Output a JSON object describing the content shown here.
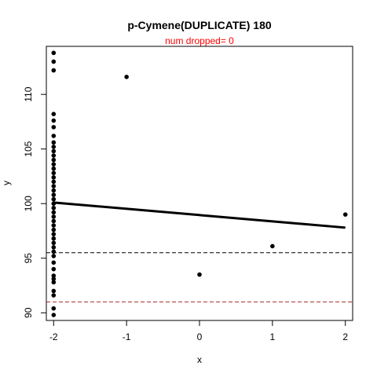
{
  "chart_data": {
    "type": "scatter",
    "title": "p-Cymene(DUPLICATE) 180",
    "subtitle": "num dropped= 0",
    "xlabel": "x",
    "ylabel": "y",
    "xlim": [
      -2.1,
      2.1
    ],
    "ylim": [
      89.3,
      114.4
    ],
    "x_ticks": [
      -2,
      -1,
      0,
      1,
      2
    ],
    "y_ticks": [
      90,
      95,
      100,
      105,
      110
    ],
    "points": [
      {
        "x": -2,
        "y": 113.8
      },
      {
        "x": -2,
        "y": 113.0
      },
      {
        "x": -2,
        "y": 112.2
      },
      {
        "x": -2,
        "y": 108.2
      },
      {
        "x": -2,
        "y": 107.6
      },
      {
        "x": -2,
        "y": 107.0
      },
      {
        "x": -2,
        "y": 106.2
      },
      {
        "x": -2,
        "y": 105.6
      },
      {
        "x": -2,
        "y": 105.2
      },
      {
        "x": -2,
        "y": 104.8
      },
      {
        "x": -2,
        "y": 104.4
      },
      {
        "x": -2,
        "y": 104.0
      },
      {
        "x": -2,
        "y": 103.6
      },
      {
        "x": -2,
        "y": 103.2
      },
      {
        "x": -2,
        "y": 102.8
      },
      {
        "x": -2,
        "y": 102.4
      },
      {
        "x": -2,
        "y": 102.0
      },
      {
        "x": -2,
        "y": 101.6
      },
      {
        "x": -2,
        "y": 101.2
      },
      {
        "x": -2,
        "y": 100.8
      },
      {
        "x": -2,
        "y": 100.4
      },
      {
        "x": -2,
        "y": 100.0
      },
      {
        "x": -2,
        "y": 99.6
      },
      {
        "x": -2,
        "y": 99.2
      },
      {
        "x": -2,
        "y": 98.8
      },
      {
        "x": -2,
        "y": 98.4
      },
      {
        "x": -2,
        "y": 98.0
      },
      {
        "x": -2,
        "y": 97.6
      },
      {
        "x": -2,
        "y": 97.2
      },
      {
        "x": -2,
        "y": 96.8
      },
      {
        "x": -2,
        "y": 96.4
      },
      {
        "x": -2,
        "y": 96.0
      },
      {
        "x": -2,
        "y": 95.6
      },
      {
        "x": -2,
        "y": 95.2
      },
      {
        "x": -2,
        "y": 94.6
      },
      {
        "x": -2,
        "y": 94.0
      },
      {
        "x": -2,
        "y": 93.4
      },
      {
        "x": -2,
        "y": 93.1
      },
      {
        "x": -2,
        "y": 92.8
      },
      {
        "x": -2,
        "y": 92.0
      },
      {
        "x": -2,
        "y": 91.6
      },
      {
        "x": -2,
        "y": 90.4
      },
      {
        "x": -2,
        "y": 89.8
      },
      {
        "x": -1,
        "y": 111.6
      },
      {
        "x": 0,
        "y": 93.5
      },
      {
        "x": 1,
        "y": 96.1
      },
      {
        "x": 2,
        "y": 99.0
      }
    ],
    "fit_line": {
      "x": [
        -2,
        2
      ],
      "y": [
        100.1,
        97.8
      ],
      "color": "#000000"
    },
    "hlines": [
      {
        "y": 95.5,
        "color": "#000000",
        "style": "dashed"
      },
      {
        "y": 91.0,
        "color": "#a52a2a",
        "style": "dashed"
      }
    ],
    "grid": false,
    "legend": "none"
  }
}
